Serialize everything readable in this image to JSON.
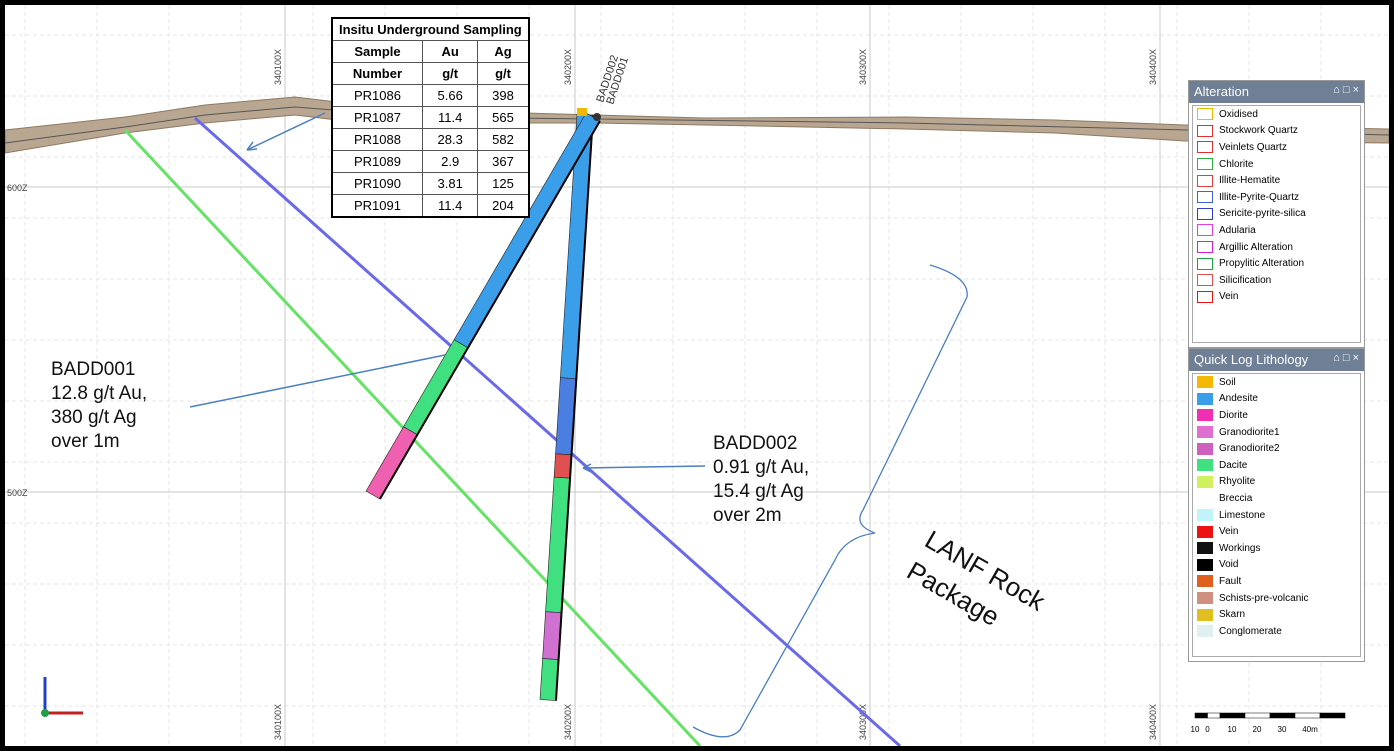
{
  "grid": {
    "x_labels": [
      "340100X",
      "340200X",
      "340300X",
      "340400X"
    ],
    "z_labels": [
      "600Z",
      "500Z"
    ]
  },
  "table": {
    "title": "Insitu Underground Sampling",
    "header": [
      [
        "Sample",
        "Au",
        "Ag"
      ],
      [
        "Number",
        "g/t",
        "g/t"
      ]
    ],
    "rows": [
      [
        "PR1086",
        "5.66",
        "398"
      ],
      [
        "PR1087",
        "11.4",
        "565"
      ],
      [
        "PR1088",
        "28.3",
        "582"
      ],
      [
        "PR1089",
        "2.9",
        "367"
      ],
      [
        "PR1090",
        "3.81",
        "125"
      ],
      [
        "PR1091",
        "11.4",
        "204"
      ]
    ]
  },
  "drillholes": [
    "BADD002",
    "BADD001"
  ],
  "annotations": [
    {
      "lines": [
        "BADD001",
        "12.8 g/t Au,",
        "380 g/t Ag",
        "over 1m"
      ]
    },
    {
      "lines": [
        "BADD002",
        "0.91 g/t Au,",
        "15.4 g/t Ag",
        "over 2m"
      ]
    },
    {
      "lines": [
        "LANF Rock",
        "Package"
      ]
    }
  ],
  "alteration": {
    "title": "Alteration",
    "items": [
      {
        "label": "Oxidised",
        "color": "#f5b800"
      },
      {
        "label": "Stockwork Quartz",
        "color": "#e03030"
      },
      {
        "label": "Veinlets Quartz",
        "color": "#e03030"
      },
      {
        "label": "Chlorite",
        "color": "#30b040"
      },
      {
        "label": "Illite-Hematite",
        "color": "#e04040"
      },
      {
        "label": "Illite-Pyrite-Quartz",
        "color": "#4060e0"
      },
      {
        "label": "Sericite-pyrite-silica",
        "color": "#3040c0"
      },
      {
        "label": "Adularia",
        "color": "#e040e0"
      },
      {
        "label": "Argillic Alteration",
        "color": "#d020d0"
      },
      {
        "label": "Propylitic Alteration",
        "color": "#20a040"
      },
      {
        "label": "Silicification",
        "color": "#e05050"
      },
      {
        "label": "Vein",
        "color": "#ee1111"
      }
    ]
  },
  "lithology": {
    "title": "Quick Log Lithology",
    "items": [
      {
        "label": "Soil",
        "color": "#f5b800"
      },
      {
        "label": "Andesite",
        "color": "#3a9ee8"
      },
      {
        "label": "Diorite",
        "color": "#f030b0"
      },
      {
        "label": "Granodiorite1",
        "color": "#e070d0"
      },
      {
        "label": "Granodiorite2",
        "color": "#d060c0"
      },
      {
        "label": "Dacite",
        "color": "#40e080"
      },
      {
        "label": "Rhyolite",
        "color": "#d0f060"
      },
      {
        "label": "Breccia",
        "color": "#ffffff"
      },
      {
        "label": "Limestone",
        "color": "#c0f4f8"
      },
      {
        "label": "Vein",
        "color": "#ee1111"
      },
      {
        "label": "Workings",
        "color": "#111111"
      },
      {
        "label": "Void",
        "color": "#000000"
      },
      {
        "label": "Fault",
        "color": "#e06020"
      },
      {
        "label": "Schists-pre-volcanic",
        "color": "#d09080"
      },
      {
        "label": "Skarn",
        "color": "#e0c020"
      },
      {
        "label": "Conglomerate",
        "color": "#e0f0f0"
      }
    ]
  },
  "scale": [
    "10",
    "0",
    "10",
    "20",
    "30",
    "40m"
  ]
}
